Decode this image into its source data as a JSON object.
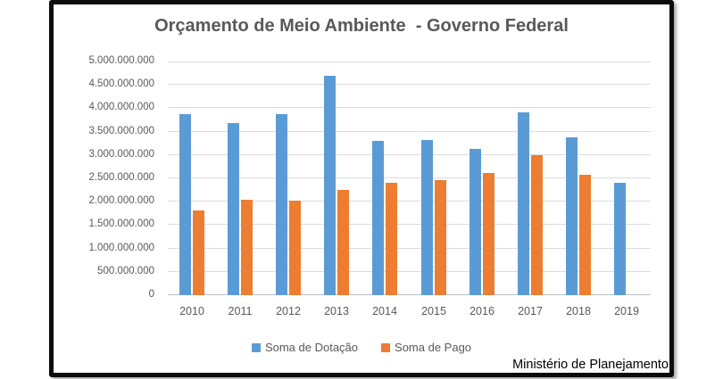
{
  "title": "Orçamento de Meio Ambiente  - Governo Federal",
  "footer": "Ministério de Planejamento",
  "colors": {
    "dotacao_blue": "#5B9BD5",
    "pago_orange": "#ED7D31",
    "gridline_gray": "#DCDCDC",
    "axis_line_gray": "#BFBFBF",
    "label_gray": "#595959",
    "frame_border_black": "#0C0C0C"
  },
  "chart_data": {
    "type": "bar",
    "title": "Orçamento de Meio Ambiente  - Governo Federal",
    "categories": [
      "2010",
      "2011",
      "2012",
      "2013",
      "2014",
      "2015",
      "2016",
      "2017",
      "2018",
      "2019"
    ],
    "series": [
      {
        "name": "Soma de Dotação",
        "color": "#5B9BD5",
        "values": [
          3870000000,
          3680000000,
          3880000000,
          4700000000,
          3300000000,
          3320000000,
          3130000000,
          3920000000,
          3370000000,
          2400000000
        ]
      },
      {
        "name": "Soma de Pago",
        "color": "#ED7D31",
        "values": [
          1820000000,
          2040000000,
          2020000000,
          2260000000,
          2410000000,
          2470000000,
          2610000000,
          3000000000,
          2570000000,
          null
        ]
      }
    ],
    "xlabel": "",
    "ylabel": "",
    "ylim": [
      0,
      5000000000
    ],
    "y_tick_step": 500000000,
    "y_ticks": [
      "0",
      "500.000.000",
      "1.000.000.000",
      "1.500.000.000",
      "2.000.000.000",
      "2.500.000.000",
      "3.000.000.000",
      "3.500.000.000",
      "4.000.000.000",
      "4.500.000.000",
      "5.000.000.000"
    ],
    "grid": true,
    "legend_position": "bottom",
    "source_note": "Ministério de Planejamento"
  }
}
